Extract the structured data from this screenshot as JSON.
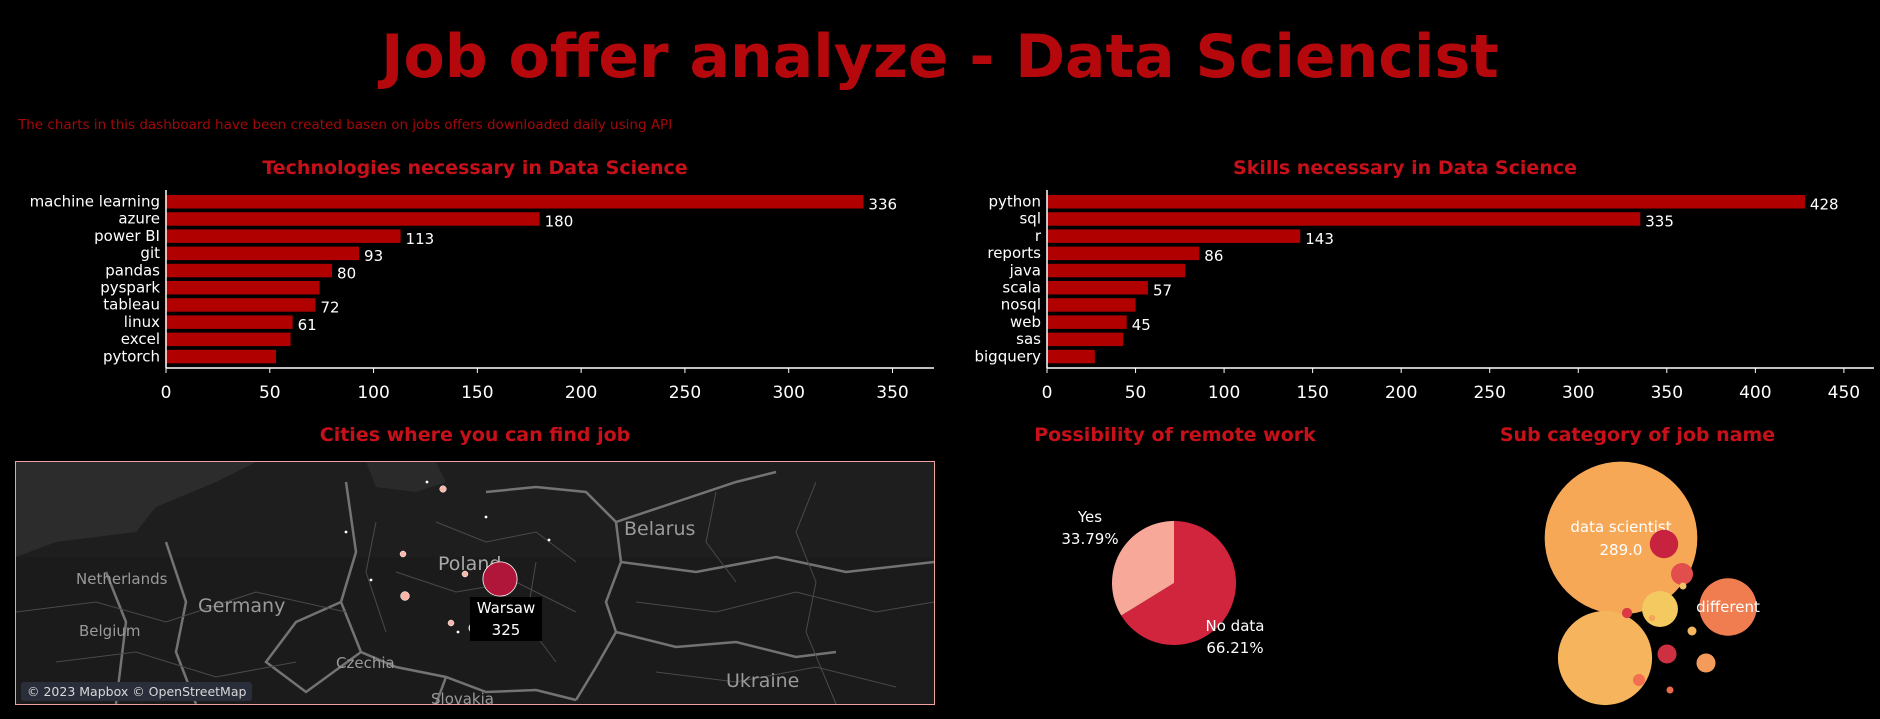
{
  "header": {
    "title": "Job offer analyze - Data Sciencist",
    "subtitle": "The charts in this dashboard have been created basen on jobs offers downloaded daily using API"
  },
  "chart_data": [
    {
      "id": "tech",
      "type": "bar",
      "orientation": "horizontal",
      "title": "Technologies necessary in Data Science",
      "categories": [
        "machine learning",
        "azure",
        "power BI",
        "git",
        "pandas",
        "pyspark",
        "tableau",
        "linux",
        "excel",
        "pytorch"
      ],
      "values": [
        336,
        180,
        113,
        93,
        80,
        74,
        72,
        61,
        60,
        53
      ],
      "labels": [
        "336",
        "180",
        "113",
        "93",
        "80",
        "",
        "72",
        "61",
        "",
        ""
      ],
      "xlim": [
        0,
        370
      ],
      "ticks": [
        0,
        50,
        100,
        150,
        200,
        250,
        300,
        350
      ],
      "bar_color": "#b00000"
    },
    {
      "id": "skills",
      "type": "bar",
      "orientation": "horizontal",
      "title": "Skills necessary in Data Science",
      "categories": [
        "python",
        "sql",
        "r",
        "reports",
        "java",
        "scala",
        "nosql",
        "web",
        "sas",
        "bigquery"
      ],
      "values": [
        428,
        335,
        143,
        86,
        78,
        57,
        50,
        45,
        43,
        27
      ],
      "labels": [
        "428",
        "335",
        "143",
        "86",
        "",
        "57",
        "",
        "45",
        "",
        ""
      ],
      "xlim": [
        0,
        467
      ],
      "ticks": [
        0,
        50,
        100,
        150,
        200,
        250,
        300,
        350,
        400,
        450
      ],
      "bar_color": "#b00000"
    },
    {
      "id": "remote",
      "type": "pie",
      "title": "Possibility of remote work",
      "slices": [
        {
          "label": "No data",
          "value": 66.21,
          "display": "66.21%",
          "color": "#d0253d"
        },
        {
          "label": "Yes",
          "value": 33.79,
          "display": "33.79%",
          "color": "#f8a898"
        }
      ]
    },
    {
      "id": "subcat",
      "type": "bubble",
      "title": "Sub category of job name",
      "bubbles": [
        {
          "label": "data scientist",
          "value": 289.0,
          "display": "289.0",
          "color": "#f6a857"
        },
        {
          "label": "",
          "value": 110,
          "display": "",
          "color": "#f6b55d"
        },
        {
          "label": "different",
          "value": 41,
          "display": "",
          "color": "#ef7d50"
        },
        {
          "label": "",
          "value": 16,
          "display": "",
          "color": "#f4c960"
        },
        {
          "label": "",
          "value": 10,
          "display": "",
          "color": "#c8233e"
        },
        {
          "label": "",
          "value": 6,
          "display": "",
          "color": "#e14e4b"
        },
        {
          "label": "",
          "value": 4.5,
          "display": "",
          "color": "#cd3040"
        },
        {
          "label": "",
          "value": 4.5,
          "display": "",
          "color": "#f49a5a"
        },
        {
          "label": "",
          "value": 1.8,
          "display": "",
          "color": "#f26f52"
        },
        {
          "label": "",
          "value": 1.3,
          "display": "",
          "color": "#db3a45"
        },
        {
          "label": "",
          "value": 1,
          "display": "",
          "color": "#f6b660"
        },
        {
          "label": "",
          "value": 0.6,
          "display": "",
          "color": "#f3c16a"
        },
        {
          "label": "",
          "value": 0.6,
          "display": "",
          "color": "#ea6a50"
        },
        {
          "label": "",
          "value": 0.5,
          "display": "",
          "color": "#f7a35b"
        }
      ]
    }
  ],
  "map": {
    "title": "Cities where you can find job",
    "labels": {
      "poland": "Poland",
      "belarus": "Belarus",
      "germany": "Germany",
      "netherlands": "Netherlands",
      "belgium": "Belgium",
      "czechia": "Czechia",
      "slovakia": "Slovakia",
      "ukraine": "Ukraine"
    },
    "attribution": "© 2023 Mapbox © OpenStreetMap",
    "tooltip": {
      "city": "Warsaw",
      "value": "325"
    },
    "cities": [
      {
        "name": "Warsaw",
        "value": 325,
        "color": "#b0163a"
      },
      {
        "name": "Gdansk",
        "value": 12,
        "color": "#fbb6aa"
      },
      {
        "name": "Poznan",
        "value": 6,
        "color": "#fbb6aa"
      },
      {
        "name": "Lodz",
        "value": 6,
        "color": "#fbb6aa"
      },
      {
        "name": "Wroclaw",
        "value": 22,
        "color": "#fbb6aa"
      },
      {
        "name": "Katowice",
        "value": 4,
        "color": "#fbb6aa"
      },
      {
        "name": "Krakow",
        "value": 30,
        "color": "#fbb6aa"
      }
    ]
  }
}
